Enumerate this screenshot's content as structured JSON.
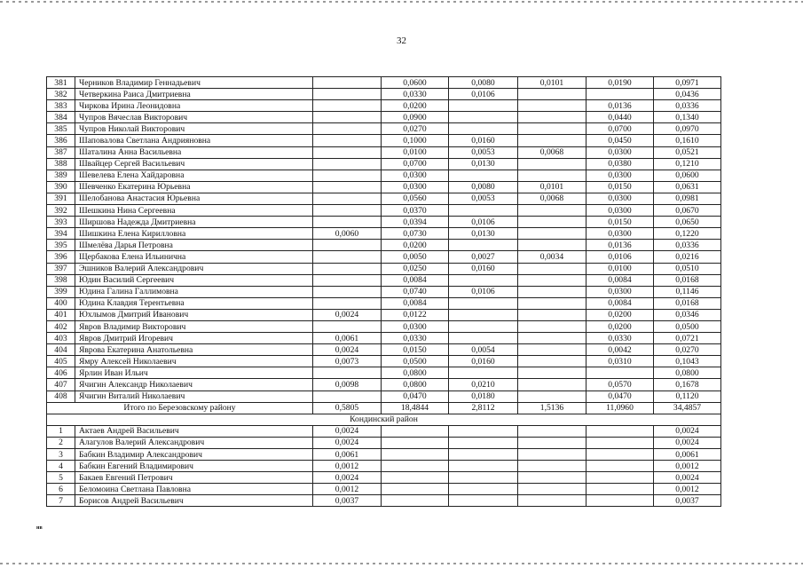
{
  "page_number": "32",
  "footer_mark": "нв",
  "rows": [
    [
      "381",
      "Черников Владимир Геннадьевич",
      "",
      "0,0600",
      "0,0080",
      "0,0101",
      "0,0190",
      "0,0971"
    ],
    [
      "382",
      "Четверкина  Раиса  Дмитриевна",
      "",
      "0,0330",
      "0,0106",
      "",
      "",
      "0,0436"
    ],
    [
      "383",
      "Чиркова Ирина Леонидовна",
      "",
      "0,0200",
      "",
      "",
      "0,0136",
      "0,0336"
    ],
    [
      "384",
      "Чупров Вячеслав Викторович",
      "",
      "0,0900",
      "",
      "",
      "0,0440",
      "0,1340"
    ],
    [
      "385",
      "Чупров Николай Викторович",
      "",
      "0,0270",
      "",
      "",
      "0,0700",
      "0,0970"
    ],
    [
      "386",
      "Шаповалова Светлана Андрияновна",
      "",
      "0,1000",
      "0,0160",
      "",
      "0,0450",
      "0,1610"
    ],
    [
      "387",
      "Шаталина Анна Васильевна",
      "",
      "0,0100",
      "0,0053",
      "0,0068",
      "0,0300",
      "0,0521"
    ],
    [
      "388",
      "Швайцер Сергей Васильевич",
      "",
      "0,0700",
      "0,0130",
      "",
      "0,0380",
      "0,1210"
    ],
    [
      "389",
      "Шевелева Елена Хайдаровна",
      "",
      "0,0300",
      "",
      "",
      "0,0300",
      "0,0600"
    ],
    [
      "390",
      "Шевченко Екатерина Юрьевна",
      "",
      "0,0300",
      "0,0080",
      "0,0101",
      "0,0150",
      "0,0631"
    ],
    [
      "391",
      "Шелобанова Анастасия Юрьевна",
      "",
      "0,0560",
      "0,0053",
      "0,0068",
      "0,0300",
      "0,0981"
    ],
    [
      "392",
      "Шешкина Нина Сергеевна",
      "",
      "0,0370",
      "",
      "",
      "0,0300",
      "0,0670"
    ],
    [
      "393",
      "Ширшова Надежда Дмитриевна",
      "",
      "0,0394",
      "0,0106",
      "",
      "0,0150",
      "0,0650"
    ],
    [
      "394",
      "Шишкина Елена Кирилловна",
      "0,0060",
      "0,0730",
      "0,0130",
      "",
      "0,0300",
      "0,1220"
    ],
    [
      "395",
      "Шмелёва Дарья Петровна",
      "",
      "0,0200",
      "",
      "",
      "0,0136",
      "0,0336"
    ],
    [
      "396",
      "Щербакова Елена Ильинична",
      "",
      "0,0050",
      "0,0027",
      "0,0034",
      "0,0106",
      "0,0216"
    ],
    [
      "397",
      "Эшников Валерий Александрович",
      "",
      "0,0250",
      "0,0160",
      "",
      "0,0100",
      "0,0510"
    ],
    [
      "398",
      "Юдин Василий Сергеевич",
      "",
      "0,0084",
      "",
      "",
      "0,0084",
      "0,0168"
    ],
    [
      "399",
      "Юдина Галина Галлимовна",
      "",
      "0,0740",
      "0,0106",
      "",
      "0,0300",
      "0,1146"
    ],
    [
      "400",
      "Юдина Клавдия Терентьевна",
      "",
      "0,0084",
      "",
      "",
      "0,0084",
      "0,0168"
    ],
    [
      "401",
      "Юхлымов Дмитрий Иванович",
      "0,0024",
      "0,0122",
      "",
      "",
      "0,0200",
      "0,0346"
    ],
    [
      "402",
      "Явров Владимир Викторович",
      "",
      "0,0300",
      "",
      "",
      "0,0200",
      "0,0500"
    ],
    [
      "403",
      "Явров Дмитрий Игоревич",
      "0,0061",
      "0,0330",
      "",
      "",
      "0,0330",
      "0,0721"
    ],
    [
      "404",
      "Яврова Екатерина Анатольевна",
      "0,0024",
      "0,0150",
      "0,0054",
      "",
      "0,0042",
      "0,0270"
    ],
    [
      "405",
      "Ямру Алексей Николаевич",
      "0,0073",
      "0,0500",
      "0,0160",
      "",
      "0,0310",
      "0,1043"
    ],
    [
      "406",
      "Ярлин Иван Ильич",
      "",
      "0,0800",
      "",
      "",
      "",
      "0,0800"
    ],
    [
      "407",
      "Ячигин Александр Николаевич",
      "0,0098",
      "0,0800",
      "0,0210",
      "",
      "0,0570",
      "0,1678"
    ],
    [
      "408",
      "Ячигин Виталий Николаевич",
      "",
      "0,0470",
      "0,0180",
      "",
      "0,0470",
      "0,1120"
    ]
  ],
  "total": {
    "label": "Итого по Березовскому району",
    "values": [
      "0,5805",
      "18,4844",
      "2,8112",
      "1,5136",
      "11,0960",
      "34,4857"
    ]
  },
  "district_title": "Кондинский район",
  "rows2": [
    [
      "1",
      "Актаев Андрей Васильевич",
      "0,0024",
      "",
      "",
      "",
      "",
      "0,0024"
    ],
    [
      "2",
      "Алагулов Валерий Александрович",
      "0,0024",
      "",
      "",
      "",
      "",
      "0,0024"
    ],
    [
      "3",
      "Бабкин Владимир Александрович",
      "0,0061",
      "",
      "",
      "",
      "",
      "0,0061"
    ],
    [
      "4",
      "Бабкин Евгений Владимирович",
      "0,0012",
      "",
      "",
      "",
      "",
      "0,0012"
    ],
    [
      "5",
      "Бакаев Евгений Петрович",
      "0,0024",
      "",
      "",
      "",
      "",
      "0,0024"
    ],
    [
      "6",
      "Беломоина Светлана Павловна",
      "0,0012",
      "",
      "",
      "",
      "",
      "0,0012"
    ],
    [
      "7",
      "Борисов Андрей Васильевич",
      "0,0037",
      "",
      "",
      "",
      "",
      "0,0037"
    ]
  ]
}
